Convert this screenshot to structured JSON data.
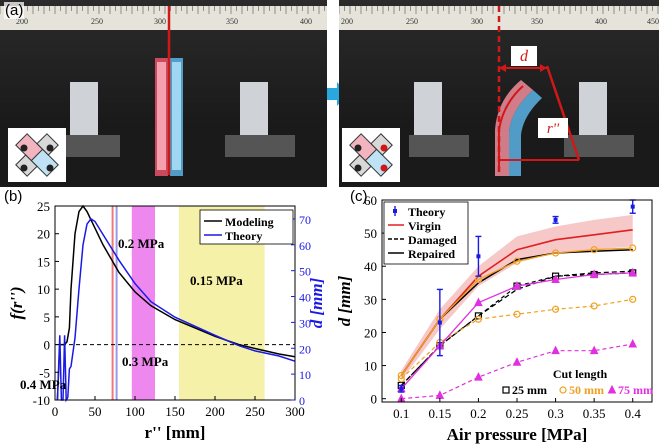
{
  "panels": {
    "a_label": "(a)",
    "b_label": "(b)",
    "c_label": "(c)"
  },
  "photo": {
    "ruler_ticks_left": [
      "200",
      "250",
      "300",
      "350",
      "400"
    ],
    "ruler_ticks_right": [
      "200",
      "250",
      "300",
      "350",
      "400",
      "450"
    ],
    "d_label": "d",
    "r_label": "r''",
    "colors": {
      "ruler": "#e6e3da",
      "actuator_red": "#e9546b",
      "actuator_blue": "#5ab4e6",
      "marker": "#d01818",
      "arrow": "#29a8e0"
    }
  },
  "chart_data": [
    {
      "id": "b",
      "type": "line",
      "xlabel": "r'' [mm]",
      "ylabel_left": "f(r'')",
      "ylabel_right": "d [mm]",
      "xlim": [
        0,
        300
      ],
      "ylim_left": [
        -10,
        25
      ],
      "ylim_right": [
        0,
        75
      ],
      "xticks": [
        0,
        50,
        100,
        150,
        200,
        250,
        300
      ],
      "yticks_left": [
        -10,
        -5,
        0,
        5,
        10,
        15,
        20,
        25
      ],
      "yticks_right": [
        0,
        10,
        20,
        30,
        40,
        50,
        60,
        70
      ],
      "series": [
        {
          "name": "Modeling",
          "color": "#000000",
          "x": [
            3,
            6,
            9,
            12,
            15,
            18,
            20,
            25,
            30,
            35,
            40,
            50,
            60,
            80,
            100,
            120,
            150,
            200,
            230,
            250,
            280,
            300
          ],
          "y": [
            -10,
            0,
            0,
            0,
            0.5,
            3,
            10,
            20,
            24,
            25,
            24,
            21,
            18,
            13,
            9.5,
            7,
            4.5,
            1.5,
            0,
            -0.7,
            -1.7,
            -2.2
          ]
        },
        {
          "name": "Theory",
          "color": "#1a1ae6",
          "axis": "right",
          "x": [
            3,
            6,
            8,
            10,
            12,
            14,
            16,
            18,
            20,
            25,
            30,
            35,
            40,
            45,
            50,
            60,
            80,
            100,
            120,
            150,
            200,
            230,
            250,
            280,
            300
          ],
          "y": [
            0,
            25,
            0,
            0,
            25,
            0,
            1,
            12,
            13,
            24,
            43,
            60,
            68,
            70,
            69,
            64,
            54,
            45,
            38,
            32,
            25,
            21,
            19,
            17,
            15
          ]
        }
      ],
      "threshold_line": {
        "y_left": 0
      },
      "bands": [
        {
          "x": [
            96,
            125
          ],
          "color": "#ee88ee"
        },
        {
          "x": [
            155,
            262
          ],
          "color": "#f5f1a8"
        }
      ],
      "vlines": [
        {
          "x": 72,
          "color": "#f07878"
        },
        {
          "x": 77,
          "color": "#9a9ae6"
        }
      ],
      "annotations": [
        "0.2 MPa",
        "0.15 MPa",
        "0.3 MPa",
        "0.4 MPa"
      ],
      "legend": "top-right"
    },
    {
      "id": "c",
      "type": "line",
      "xlabel": "Air pressure [MPa]",
      "ylabel": "d [mm]",
      "xlim": [
        0.075,
        0.425
      ],
      "ylim": [
        -1,
        60
      ],
      "xticks": [
        0.1,
        0.15,
        0.2,
        0.25,
        0.3,
        0.35,
        0.4
      ],
      "yticks": [
        0,
        10,
        20,
        30,
        40,
        50,
        60
      ],
      "x": [
        0.1,
        0.15,
        0.2,
        0.25,
        0.3,
        0.35,
        0.4
      ],
      "series": [
        {
          "name": "Theory",
          "color": "#1a1ae6",
          "kind": "errorbar",
          "x": [
            0.1,
            0.15,
            0.2,
            0.3,
            0.4
          ],
          "y": [
            3,
            23,
            43,
            54,
            58
          ],
          "err": [
            1,
            10,
            6,
            1,
            2
          ]
        },
        {
          "name": "Virgin",
          "color": "#e02020",
          "kind": "line",
          "x": [
            0.1,
            0.15,
            0.2,
            0.25,
            0.3,
            0.35,
            0.4
          ],
          "y": [
            7,
            24,
            37,
            45,
            48,
            49.5,
            51
          ],
          "band_low": [
            5.5,
            21,
            34,
            41,
            44,
            45,
            46
          ],
          "band_high": [
            8.5,
            27,
            40,
            49,
            52,
            54,
            55.5
          ]
        },
        {
          "name": "Damaged",
          "color": "#000000",
          "kind": "dashed",
          "x": [
            0.1,
            0.15,
            0.2,
            0.25,
            0.3,
            0.35,
            0.4
          ],
          "y": [
            4,
            16,
            25,
            33,
            37,
            38,
            38.5
          ]
        },
        {
          "name": "Repaired",
          "color": "#000000",
          "kind": "line",
          "x": [
            0.1,
            0.15,
            0.2,
            0.25,
            0.3,
            0.35,
            0.4
          ],
          "y": [
            7,
            24,
            35,
            42,
            44,
            44.5,
            45
          ]
        },
        {
          "name": "25 mm",
          "color": "#000000",
          "kind": "markers-dashed",
          "marker": "square",
          "x": [
            0.1,
            0.15,
            0.2,
            0.25,
            0.3,
            0.35,
            0.4
          ],
          "y": [
            4,
            16,
            25,
            34,
            37,
            37.5,
            38
          ]
        },
        {
          "name": "50 mm",
          "color": "#f0a020",
          "kind": "markers-dashed",
          "marker": "circle",
          "x": [
            0.1,
            0.15,
            0.2,
            0.25,
            0.3,
            0.35,
            0.4
          ],
          "y": [
            6,
            17,
            24,
            25.5,
            27,
            28,
            30
          ]
        },
        {
          "name": "75 mm",
          "color": "#e030e0",
          "kind": "markers-dashed",
          "marker": "triangle",
          "x": [
            0.1,
            0.15,
            0.2,
            0.25,
            0.3,
            0.35,
            0.4
          ],
          "y": [
            0,
            1,
            6.5,
            11,
            14.5,
            14.5,
            16.5
          ]
        },
        {
          "name": "orange-solid",
          "color": "#f0a020",
          "kind": "markers",
          "marker": "circle",
          "x": [
            0.1,
            0.15,
            0.2,
            0.25,
            0.3,
            0.35,
            0.4
          ],
          "y": [
            7,
            24,
            36,
            41.5,
            44,
            45,
            45.5
          ]
        },
        {
          "name": "magenta-solid",
          "color": "#e030e0",
          "kind": "markers",
          "marker": "triangle",
          "x": [
            0.1,
            0.15,
            0.2,
            0.25,
            0.3,
            0.35,
            0.4
          ],
          "y": [
            3,
            16,
            29,
            34,
            36,
            37.5,
            38
          ]
        }
      ],
      "legend": "top-left",
      "cut_legend_title": "Cut length"
    }
  ]
}
